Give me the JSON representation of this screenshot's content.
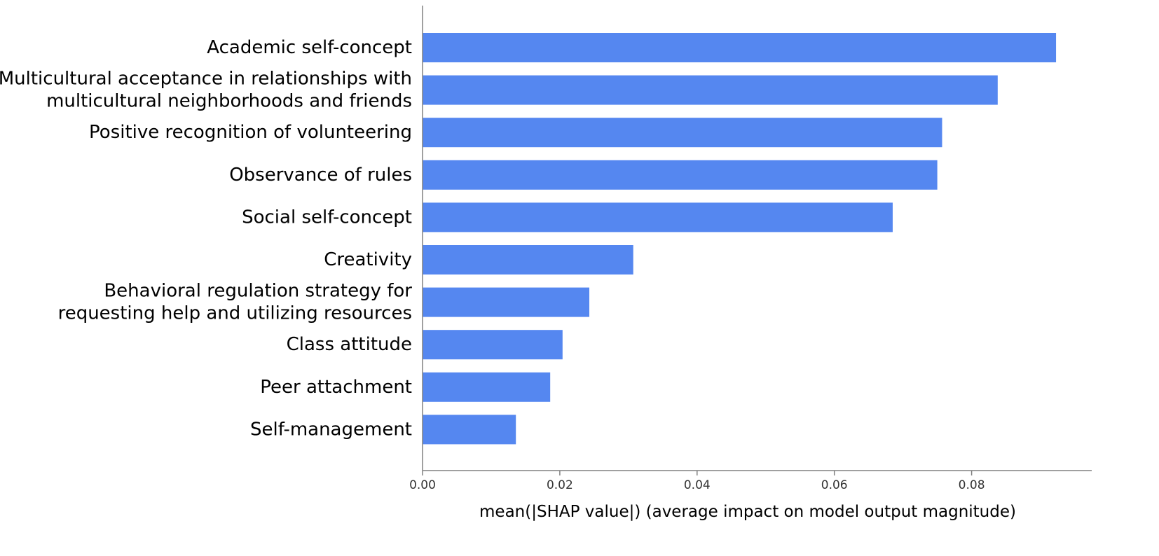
{
  "chart_data": {
    "type": "bar",
    "orientation": "horizontal",
    "categories": [
      [
        "Academic self-concept"
      ],
      [
        "Multicultural acceptance in relationships with",
        "multicultural neighborhoods and friends"
      ],
      [
        "Positive recognition of volunteering"
      ],
      [
        "Observance of rules"
      ],
      [
        "Social self-concept"
      ],
      [
        "Creativity"
      ],
      [
        "Behavioral regulation strategy for",
        "requesting help and utilizing resources"
      ],
      [
        "Class attitude"
      ],
      [
        "Peer attachment"
      ],
      [
        "Self-management"
      ]
    ],
    "values": [
      0.0923,
      0.0838,
      0.0757,
      0.075,
      0.0685,
      0.0307,
      0.0243,
      0.0204,
      0.0186,
      0.0136
    ],
    "xlabel": "mean(|SHAP value|) (average impact on model output magnitude)",
    "ylabel": "",
    "xlim": [
      0,
      0.0975
    ],
    "xticks": [
      0.0,
      0.02,
      0.04,
      0.06,
      0.08
    ],
    "xtick_labels": [
      "0.00",
      "0.02",
      "0.04",
      "0.06",
      "0.08"
    ],
    "bar_color": "#5587f0",
    "grid": false,
    "legend": false
  }
}
